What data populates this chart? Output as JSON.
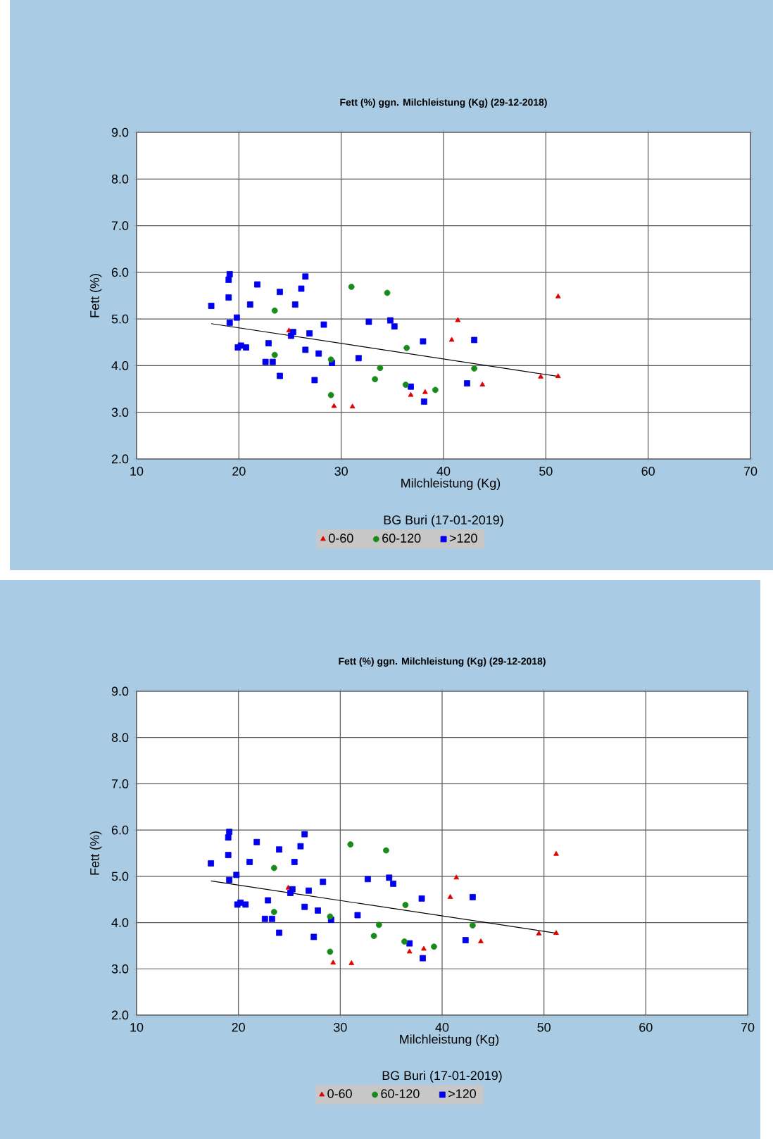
{
  "chart_data": [
    {
      "type": "scatter",
      "title": "Fett (%)  ggn. Milchleistung (Kg) (29-12-2018)",
      "xlabel": "Milchleistung (Kg)",
      "ylabel": "Fett (%)",
      "annotations": [
        "BG Buri (17-01-2019)"
      ],
      "xlim": [
        10,
        70
      ],
      "xticks": [
        10,
        20,
        30,
        40,
        50,
        60,
        70
      ],
      "ylim": [
        2,
        9
      ],
      "yticks": [
        {
          "value": 2,
          "label": "2.0"
        },
        {
          "value": 3,
          "label": "3.0"
        },
        {
          "value": 4,
          "label": "4.0"
        },
        {
          "value": 5,
          "label": "5.0"
        },
        {
          "value": 6,
          "label": "6.0"
        },
        {
          "value": 7,
          "label": "7.0"
        },
        {
          "value": 8,
          "label": "8.0"
        },
        {
          "value": 9,
          "label": "9.0"
        }
      ],
      "grid": true,
      "legend": "bottom",
      "series": [
        {
          "name": "0-60",
          "color": "#e00000",
          "marker": "triangle",
          "x": [
            24.9,
            29.3,
            31.1,
            36.8,
            38.2,
            40.8,
            41.4,
            43.8,
            49.5,
            51.2,
            51.2
          ],
          "values": [
            4.75,
            3.13,
            3.12,
            3.37,
            3.43,
            4.55,
            4.97,
            3.59,
            3.76,
            3.77,
            5.48
          ]
        },
        {
          "name": "60-120",
          "color": "#1a8a1a",
          "marker": "circle",
          "x": [
            23.5,
            23.5,
            29.0,
            29.0,
            31.0,
            33.3,
            33.8,
            34.5,
            36.3,
            36.4,
            39.2,
            43.0
          ],
          "values": [
            5.18,
            4.23,
            4.13,
            3.37,
            5.69,
            3.71,
            3.95,
            5.56,
            3.59,
            4.38,
            3.48,
            3.94
          ]
        },
        {
          "name": ">120",
          "color": "#0000ee",
          "marker": "square",
          "x": [
            17.3,
            19.1,
            19.0,
            19.0,
            19.1,
            19.8,
            19.9,
            20.2,
            20.7,
            21.1,
            21.8,
            22.9,
            22.6,
            23.3,
            24.0,
            24.0,
            25.1,
            25.3,
            25.5,
            26.1,
            26.5,
            26.5,
            26.9,
            27.4,
            27.8,
            28.3,
            29.1,
            31.7,
            32.7,
            34.8,
            35.2,
            36.8,
            38.0,
            38.1,
            42.3,
            43.0
          ],
          "values": [
            5.28,
            5.96,
            5.84,
            5.46,
            4.92,
            5.03,
            4.39,
            4.43,
            4.39,
            5.31,
            5.74,
            4.48,
            4.08,
            4.08,
            5.58,
            3.78,
            4.64,
            4.72,
            5.31,
            5.65,
            5.91,
            4.34,
            4.69,
            3.69,
            4.26,
            4.88,
            4.06,
            4.16,
            4.94,
            4.97,
            4.84,
            3.55,
            4.52,
            3.23,
            3.62,
            4.55
          ]
        },
        {
          "type": "line",
          "color": "#000000",
          "x": [
            17.3,
            51.2
          ],
          "values": [
            4.9,
            3.77
          ]
        }
      ]
    },
    {
      "type": "scatter",
      "title": "Fett (%)  ggn. Milchleistung (Kg) (29-12-2018)",
      "xlabel": "Milchleistung (Kg)",
      "ylabel": "Fett (%)",
      "annotations": [
        "BG Buri (17-01-2019)"
      ],
      "xlim": [
        10,
        70
      ],
      "xticks": [
        10,
        20,
        30,
        40,
        50,
        60,
        70
      ],
      "ylim": [
        2,
        9
      ],
      "yticks": [
        {
          "value": 2,
          "label": "2.0"
        },
        {
          "value": 3,
          "label": "3.0"
        },
        {
          "value": 4,
          "label": "4.0"
        },
        {
          "value": 5,
          "label": "5.0"
        },
        {
          "value": 6,
          "label": "6.0"
        },
        {
          "value": 7,
          "label": "7.0"
        },
        {
          "value": 8,
          "label": "8.0"
        },
        {
          "value": 9,
          "label": "9.0"
        }
      ],
      "grid": true,
      "legend": "bottom",
      "series": [
        {
          "name": "0-60",
          "color": "#e00000",
          "marker": "triangle",
          "x": [
            24.9,
            29.3,
            31.1,
            36.8,
            38.2,
            40.8,
            41.4,
            43.8,
            49.5,
            51.2,
            51.2
          ],
          "values": [
            4.75,
            3.13,
            3.12,
            3.37,
            3.43,
            4.55,
            4.97,
            3.59,
            3.76,
            3.77,
            5.48
          ]
        },
        {
          "name": "60-120",
          "color": "#1a8a1a",
          "marker": "circle",
          "x": [
            23.5,
            23.5,
            29.0,
            29.0,
            31.0,
            33.3,
            33.8,
            34.5,
            36.3,
            36.4,
            39.2,
            43.0
          ],
          "values": [
            5.18,
            4.23,
            4.13,
            3.37,
            5.69,
            3.71,
            3.95,
            5.56,
            3.59,
            4.38,
            3.48,
            3.94
          ]
        },
        {
          "name": ">120",
          "color": "#0000ee",
          "marker": "square",
          "x": [
            17.3,
            19.1,
            19.0,
            19.0,
            19.1,
            19.8,
            19.9,
            20.2,
            20.7,
            21.1,
            21.8,
            22.9,
            22.6,
            23.3,
            24.0,
            24.0,
            25.1,
            25.3,
            25.5,
            26.1,
            26.5,
            26.5,
            26.9,
            27.4,
            27.8,
            28.3,
            29.1,
            31.7,
            32.7,
            34.8,
            35.2,
            36.8,
            38.0,
            38.1,
            42.3,
            43.0
          ],
          "values": [
            5.28,
            5.96,
            5.84,
            5.46,
            4.92,
            5.03,
            4.39,
            4.43,
            4.39,
            5.31,
            5.74,
            4.48,
            4.08,
            4.08,
            5.58,
            3.78,
            4.64,
            4.72,
            5.31,
            5.65,
            5.91,
            4.34,
            4.69,
            3.69,
            4.26,
            4.88,
            4.06,
            4.16,
            4.94,
            4.97,
            4.84,
            3.55,
            4.52,
            3.23,
            3.62,
            4.55
          ]
        },
        {
          "type": "line",
          "color": "#000000",
          "x": [
            17.3,
            51.2
          ],
          "values": [
            4.9,
            3.77
          ]
        }
      ]
    }
  ]
}
